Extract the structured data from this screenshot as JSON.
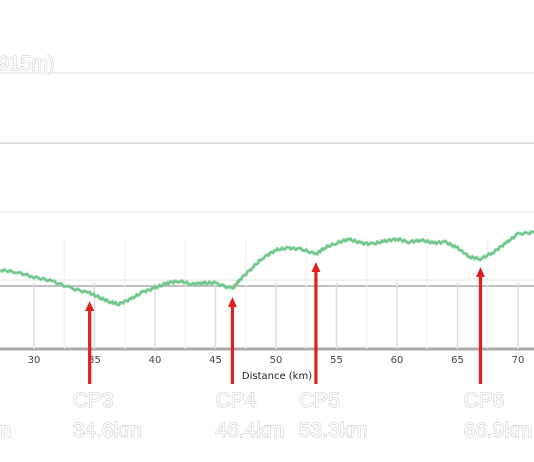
{
  "chart_data": {
    "type": "line",
    "top_note": "915m)",
    "xlabel": "Distance (km)",
    "xticks": [
      30,
      35,
      40,
      45,
      50,
      55,
      60,
      65,
      70
    ],
    "xlim": [
      27.2,
      71.5
    ],
    "line_color": "#7fd49a",
    "profile": [
      [
        27.2,
        270
      ],
      [
        28.5,
        272
      ],
      [
        30,
        277
      ],
      [
        31.5,
        281
      ],
      [
        33,
        288
      ],
      [
        34.6,
        293
      ],
      [
        35.5,
        298
      ],
      [
        36.3,
        302
      ],
      [
        37,
        304
      ],
      [
        38,
        299
      ],
      [
        39,
        292
      ],
      [
        40,
        288
      ],
      [
        41,
        283
      ],
      [
        42,
        281
      ],
      [
        43,
        284
      ],
      [
        44,
        283
      ],
      [
        45,
        283
      ],
      [
        46.4,
        289
      ],
      [
        47,
        280
      ],
      [
        48,
        268
      ],
      [
        49,
        257
      ],
      [
        50,
        250
      ],
      [
        51,
        248
      ],
      [
        52,
        249
      ],
      [
        53.3,
        254
      ],
      [
        54,
        248
      ],
      [
        55,
        243
      ],
      [
        56,
        239
      ],
      [
        57,
        243
      ],
      [
        58,
        244
      ],
      [
        59,
        241
      ],
      [
        60,
        239
      ],
      [
        61,
        242
      ],
      [
        62,
        240
      ],
      [
        63,
        243
      ],
      [
        64,
        242
      ],
      [
        65,
        248
      ],
      [
        66,
        257
      ],
      [
        66.9,
        259
      ],
      [
        68,
        252
      ],
      [
        69,
        243
      ],
      [
        70,
        234
      ],
      [
        71.5,
        232
      ]
    ],
    "checkpoints": [
      {
        "label": "CP3",
        "km_label": "34.6km",
        "x": 34.6
      },
      {
        "label": "CP4",
        "km_label": "46.4km",
        "x": 46.4
      },
      {
        "label": "CP5",
        "km_label": "53.3km",
        "x": 53.3
      },
      {
        "label": "CP6",
        "km_label": "66.9km",
        "x": 66.9
      }
    ],
    "arrow_color": "#e02020",
    "corner_label": "m"
  }
}
